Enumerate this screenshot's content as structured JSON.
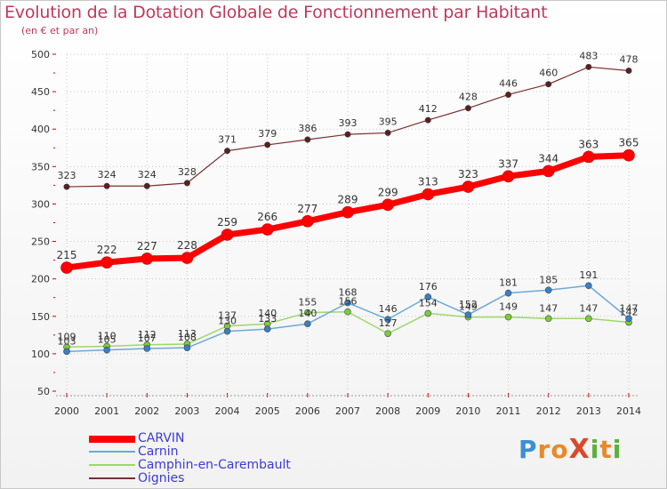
{
  "header": {
    "title": "Evolution de la Dotation Globale de Fonctionnement par Habitant",
    "subtitle": "(en € et par an)"
  },
  "logo": {
    "text": "ProXiti",
    "letter_colors": [
      "#3b8fd6",
      "#e8892b",
      "#e8892b",
      "#d94a2b",
      "#5bb13b",
      "#e8892b",
      "#5bb13b"
    ]
  },
  "chart_data": {
    "type": "line",
    "title": "Evolution de la Dotation Globale de Fonctionnement par Habitant",
    "subtitle": "(en € et par an)",
    "x": [
      2000,
      2001,
      2002,
      2003,
      2004,
      2005,
      2006,
      2007,
      2008,
      2009,
      2010,
      2011,
      2012,
      2013,
      2014
    ],
    "ylim": [
      50,
      500
    ],
    "yticks": [
      50,
      100,
      150,
      200,
      250,
      300,
      350,
      400,
      450,
      500
    ],
    "grid": true,
    "legend_position": "bottom-left",
    "series": [
      {
        "name": "CARVIN",
        "color": "#ff0000",
        "values": [
          215,
          222,
          227,
          228,
          259,
          266,
          277,
          289,
          299,
          313,
          323,
          337,
          344,
          363,
          365
        ]
      },
      {
        "name": "Carnin",
        "color": "#6aaad8",
        "values": [
          103,
          105,
          107,
          108,
          130,
          133,
          140,
          168,
          146,
          176,
          152,
          181,
          185,
          191,
          147
        ]
      },
      {
        "name": "Camphin-en-Carembault",
        "color": "#9cd86a",
        "values": [
          109,
          110,
          112,
          113,
          137,
          140,
          155,
          156,
          127,
          154,
          149,
          149,
          147,
          147,
          142
        ]
      },
      {
        "name": "Oignies",
        "color": "#7a2f2f",
        "values": [
          323,
          324,
          324,
          328,
          371,
          379,
          386,
          393,
          395,
          412,
          428,
          446,
          460,
          483,
          478
        ]
      }
    ]
  }
}
